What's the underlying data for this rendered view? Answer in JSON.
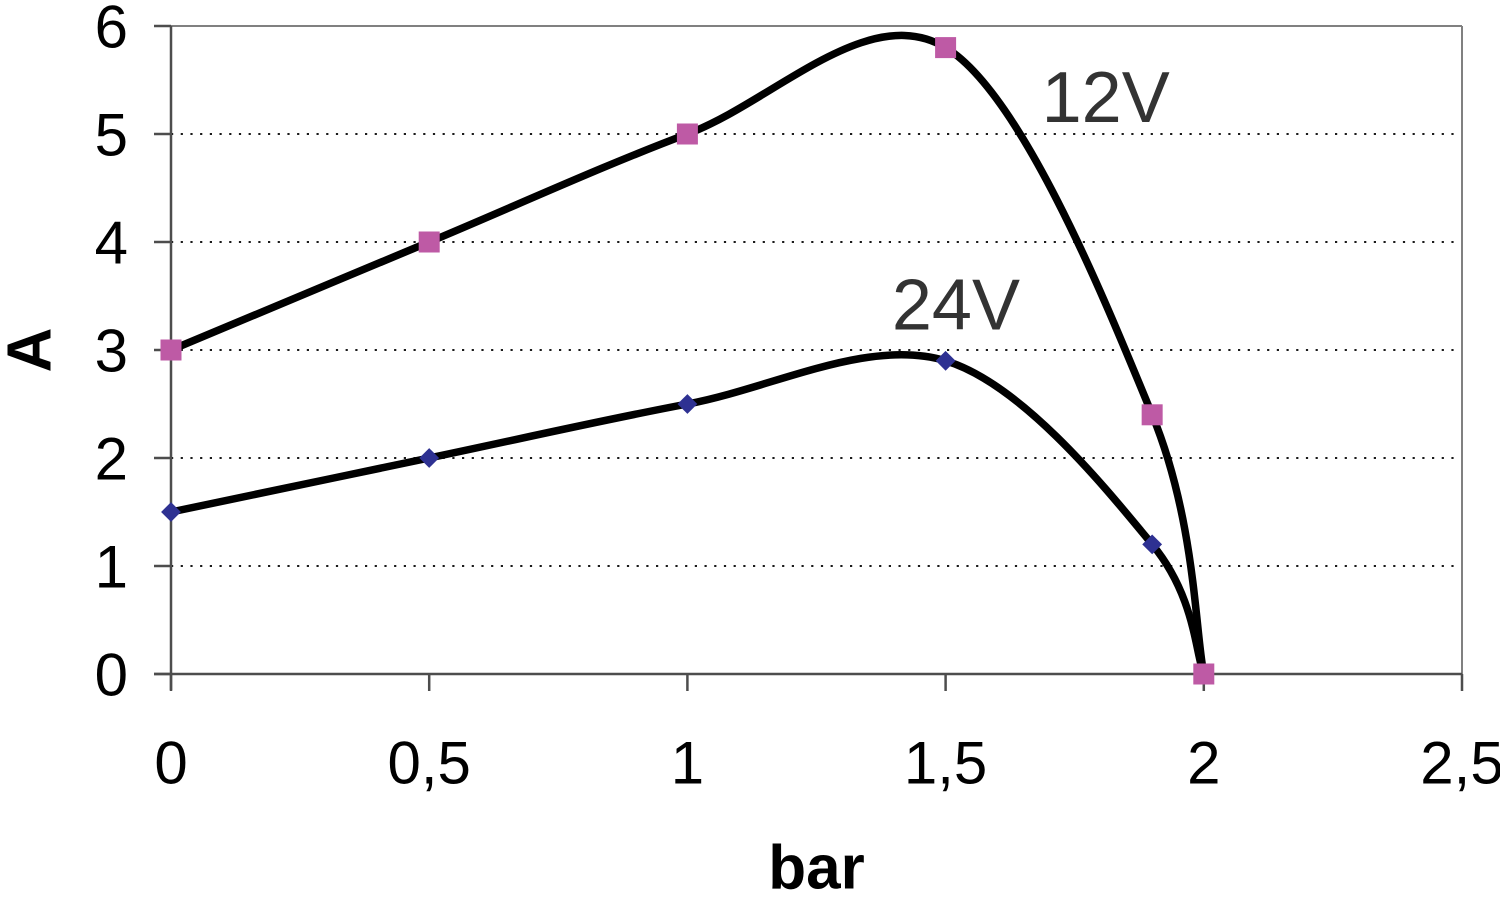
{
  "chart_data": {
    "type": "line",
    "title": "",
    "xlabel": "bar",
    "ylabel": "A",
    "xlim": [
      0,
      2.5
    ],
    "ylim": [
      0,
      6
    ],
    "x_ticks": {
      "values": [
        0,
        0.5,
        1,
        1.5,
        2,
        2.5
      ],
      "labels": [
        "0",
        "0,5",
        "1",
        "1,5",
        "2",
        "2,5"
      ]
    },
    "y_ticks": {
      "values": [
        0,
        1,
        2,
        3,
        4,
        5,
        6
      ],
      "labels": [
        "0",
        "1",
        "2",
        "3",
        "4",
        "5",
        "6"
      ]
    },
    "grid": "horizontal dotted gridlines at y = 1,2,3,4,5; solid gray top and right plot border",
    "legend": "none",
    "x": [
      0,
      0.5,
      1,
      1.5,
      1.9,
      2
    ],
    "series": [
      {
        "name": "24V",
        "values": [
          1.5,
          2,
          2.5,
          2.9,
          1.2,
          0
        ],
        "marker": "diamond",
        "marker_color": "#2E3192",
        "line_color": "#000000"
      },
      {
        "name": "12V",
        "values": [
          3,
          4,
          5,
          5.8,
          2.4,
          0
        ],
        "marker": "square",
        "marker_color": "#BE5AA5",
        "line_color": "#000000"
      }
    ],
    "annotations": [
      {
        "text": "12V",
        "x": 1.81,
        "y": 5.35
      },
      {
        "text": "24V",
        "x": 1.52,
        "y": 3.43
      }
    ]
  },
  "colors": {
    "background": "#FFFFFF",
    "axis": "#4D4D4D",
    "plot_border": "#808080",
    "gridline": "#1A1A1A",
    "tick_label": "#000000",
    "axis_title": "#000000",
    "series_label": "#333333"
  }
}
